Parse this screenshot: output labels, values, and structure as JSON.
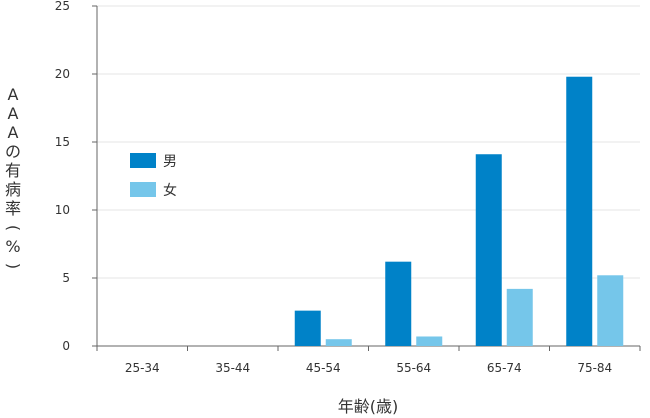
{
  "chart_data": {
    "type": "bar",
    "title": "",
    "categories": [
      "25-34",
      "35-44",
      "45-54",
      "55-64",
      "65-74",
      "75-84"
    ],
    "series": [
      {
        "name": "男",
        "color": "#0082c8",
        "values": [
          0,
          0,
          2.6,
          6.2,
          14.1,
          19.8
        ]
      },
      {
        "name": "女",
        "color": "#75c6ea",
        "values": [
          0,
          0,
          0.5,
          0.7,
          4.2,
          5.2
        ]
      }
    ],
    "xlabel": "年齢(歳)",
    "ylabel": "AAAの有病率(%)",
    "ylim": [
      0,
      25
    ],
    "yticks": [
      "0",
      "5",
      "10",
      "15",
      "20",
      "25"
    ],
    "grid": true,
    "legend_position": "upper-left"
  }
}
